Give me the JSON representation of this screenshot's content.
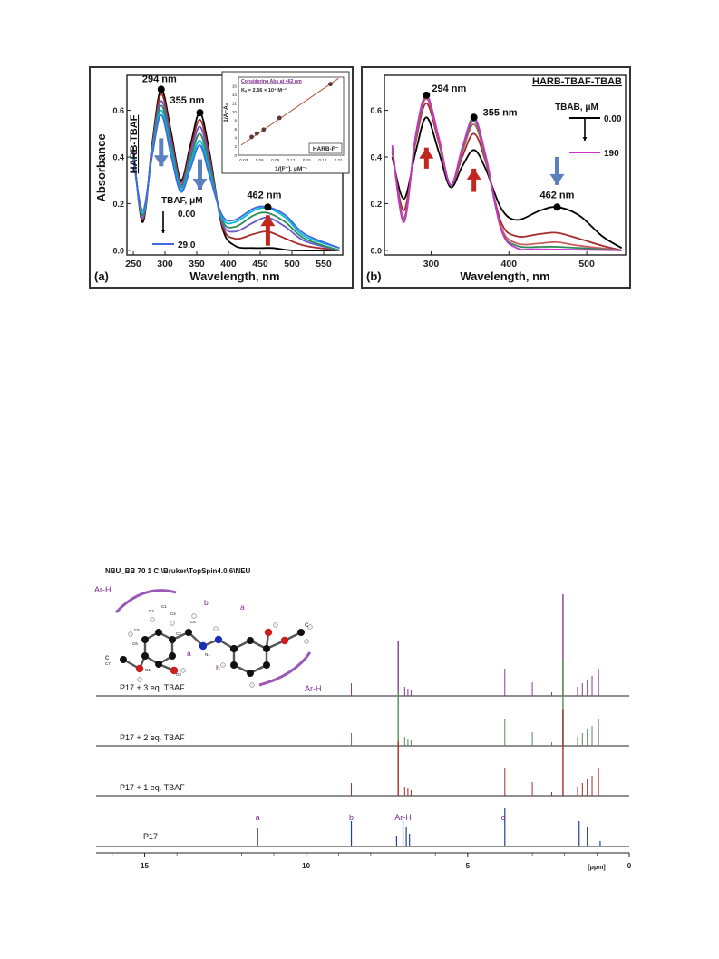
{
  "chart_data": [
    {
      "type": "line",
      "panel_label": "(a)",
      "xlabel": "Wavelength, nm",
      "ylabel": "Absorbance",
      "xlim": [
        240,
        580
      ],
      "ylim": [
        -0.02,
        0.75
      ],
      "xticks": [
        250,
        300,
        350,
        400,
        450,
        500,
        550
      ],
      "yticks": [
        0.0,
        0.2,
        0.4,
        0.6
      ],
      "series_label": "HARB-TBAF",
      "legend": {
        "title": "TBAF, μM",
        "start": "0.00",
        "end": "29.0"
      },
      "peaks": [
        {
          "label": "294 nm",
          "x": 294,
          "y": 0.69
        },
        {
          "label": "355 nm",
          "x": 355,
          "y": 0.59
        },
        {
          "label": "462 nm",
          "x": 462,
          "y": 0.185
        }
      ],
      "series": [
        {
          "color": "#000000",
          "values": [
            [
              250,
              0.44
            ],
            [
              265,
              0.12
            ],
            [
              280,
              0.46
            ],
            [
              294,
              0.69
            ],
            [
              310,
              0.5
            ],
            [
              325,
              0.3
            ],
            [
              340,
              0.45
            ],
            [
              355,
              0.59
            ],
            [
              370,
              0.42
            ],
            [
              390,
              0.1
            ],
            [
              410,
              0.02
            ],
            [
              440,
              0.01
            ],
            [
              470,
              0.01
            ],
            [
              500,
              0.0
            ],
            [
              575,
              0.0
            ]
          ]
        },
        {
          "color": "#a52a2a",
          "values": [
            [
              250,
              0.43
            ],
            [
              265,
              0.13
            ],
            [
              280,
              0.45
            ],
            [
              294,
              0.67
            ],
            [
              310,
              0.48
            ],
            [
              325,
              0.29
            ],
            [
              340,
              0.43
            ],
            [
              355,
              0.56
            ],
            [
              370,
              0.4
            ],
            [
              390,
              0.11
            ],
            [
              410,
              0.05
            ],
            [
              440,
              0.07
            ],
            [
              462,
              0.08
            ],
            [
              490,
              0.05
            ],
            [
              520,
              0.02
            ],
            [
              575,
              0.0
            ]
          ]
        },
        {
          "color": "#6a5acd",
          "values": [
            [
              250,
              0.42
            ],
            [
              265,
              0.14
            ],
            [
              280,
              0.44
            ],
            [
              294,
              0.64
            ],
            [
              310,
              0.46
            ],
            [
              325,
              0.28
            ],
            [
              340,
              0.41
            ],
            [
              355,
              0.53
            ],
            [
              370,
              0.38
            ],
            [
              390,
              0.12
            ],
            [
              410,
              0.08
            ],
            [
              440,
              0.12
            ],
            [
              462,
              0.14
            ],
            [
              490,
              0.1
            ],
            [
              520,
              0.04
            ],
            [
              575,
              0.0
            ]
          ]
        },
        {
          "color": "#2e8b57",
          "values": [
            [
              250,
              0.41
            ],
            [
              265,
              0.15
            ],
            [
              280,
              0.43
            ],
            [
              294,
              0.62
            ],
            [
              310,
              0.44
            ],
            [
              325,
              0.27
            ],
            [
              340,
              0.39
            ],
            [
              355,
              0.5
            ],
            [
              370,
              0.36
            ],
            [
              390,
              0.13
            ],
            [
              410,
              0.1
            ],
            [
              440,
              0.15
            ],
            [
              462,
              0.16
            ],
            [
              490,
              0.12
            ],
            [
              520,
              0.05
            ],
            [
              575,
              0.0
            ]
          ]
        },
        {
          "color": "#00bcd4",
          "values": [
            [
              250,
              0.4
            ],
            [
              265,
              0.16
            ],
            [
              280,
              0.42
            ],
            [
              294,
              0.6
            ],
            [
              310,
              0.42
            ],
            [
              325,
              0.26
            ],
            [
              340,
              0.37
            ],
            [
              355,
              0.47
            ],
            [
              370,
              0.34
            ],
            [
              390,
              0.14
            ],
            [
              410,
              0.12
            ],
            [
              440,
              0.17
            ],
            [
              462,
              0.18
            ],
            [
              490,
              0.14
            ],
            [
              520,
              0.06
            ],
            [
              575,
              0.01
            ]
          ]
        },
        {
          "color": "#4169e1",
          "values": [
            [
              250,
              0.39
            ],
            [
              265,
              0.17
            ],
            [
              280,
              0.41
            ],
            [
              294,
              0.58
            ],
            [
              310,
              0.4
            ],
            [
              325,
              0.25
            ],
            [
              340,
              0.35
            ],
            [
              355,
              0.45
            ],
            [
              370,
              0.32
            ],
            [
              390,
              0.15
            ],
            [
              410,
              0.13
            ],
            [
              440,
              0.18
            ],
            [
              462,
              0.185
            ],
            [
              490,
              0.15
            ],
            [
              520,
              0.07
            ],
            [
              575,
              0.01
            ]
          ]
        }
      ],
      "inset": {
        "title": "Considering Abs at 462 nm",
        "ka_text": "Kₐ = 2.56 × 10⁴ M⁻¹",
        "xlabel": "1/[F⁻], μM⁻¹",
        "ylabel": "1/A−A₀",
        "tag": "HARB-F⁻",
        "xlim": [
          0.02,
          0.22
        ],
        "ylim": [
          0,
          18
        ],
        "xticks": [
          "0.03",
          "0.06",
          "0.09",
          "0.12",
          "0.15",
          "0.18",
          "0.21"
        ],
        "yticks": [
          "0",
          "2",
          "4",
          "6",
          "8",
          "10",
          "12",
          "14",
          "16"
        ],
        "points": [
          [
            0.045,
            4.2
          ],
          [
            0.055,
            5.0
          ],
          [
            0.068,
            5.9
          ],
          [
            0.098,
            8.6
          ],
          [
            0.195,
            16.4
          ]
        ],
        "fit": [
          [
            0.025,
            2.3
          ],
          [
            0.21,
            17.7
          ]
        ]
      }
    },
    {
      "type": "line",
      "panel_label": "(b)",
      "xlabel": "Wavelength, nm",
      "ylabel": "",
      "xlim": [
        240,
        550
      ],
      "ylim": [
        -0.02,
        0.75
      ],
      "xticks": [
        300,
        400,
        500
      ],
      "yticks": [
        0.0,
        0.2,
        0.4,
        0.6
      ],
      "series_label": "HARB-TBAF-TBAB",
      "legend": {
        "title": "TBAB, μM",
        "start": "0.00",
        "end": "190"
      },
      "peaks": [
        {
          "label": "294 nm",
          "x": 294,
          "y": 0.665
        },
        {
          "label": "355 nm",
          "x": 355,
          "y": 0.57
        },
        {
          "label": "462 nm",
          "x": 462,
          "y": 0.185
        }
      ],
      "series": [
        {
          "color": "#000000",
          "values": [
            [
              250,
              0.4
            ],
            [
              265,
              0.22
            ],
            [
              280,
              0.42
            ],
            [
              294,
              0.57
            ],
            [
              310,
              0.42
            ],
            [
              325,
              0.27
            ],
            [
              340,
              0.36
            ],
            [
              355,
              0.43
            ],
            [
              370,
              0.35
            ],
            [
              390,
              0.18
            ],
            [
              410,
              0.13
            ],
            [
              440,
              0.17
            ],
            [
              462,
              0.185
            ],
            [
              490,
              0.15
            ],
            [
              520,
              0.06
            ],
            [
              545,
              0.01
            ]
          ]
        },
        {
          "color": "#a52a2a",
          "values": [
            [
              250,
              0.42
            ],
            [
              265,
              0.17
            ],
            [
              280,
              0.46
            ],
            [
              294,
              0.63
            ],
            [
              310,
              0.46
            ],
            [
              325,
              0.28
            ],
            [
              340,
              0.4
            ],
            [
              355,
              0.5
            ],
            [
              370,
              0.38
            ],
            [
              390,
              0.12
            ],
            [
              410,
              0.06
            ],
            [
              440,
              0.07
            ],
            [
              462,
              0.075
            ],
            [
              490,
              0.05
            ],
            [
              520,
              0.02
            ],
            [
              545,
              0.0
            ]
          ]
        },
        {
          "color": "#cd5c5c",
          "values": [
            [
              250,
              0.43
            ],
            [
              265,
              0.14
            ],
            [
              280,
              0.47
            ],
            [
              294,
              0.65
            ],
            [
              310,
              0.47
            ],
            [
              325,
              0.28
            ],
            [
              340,
              0.42
            ],
            [
              355,
              0.54
            ],
            [
              370,
              0.39
            ],
            [
              390,
              0.1
            ],
            [
              410,
              0.03
            ],
            [
              440,
              0.03
            ],
            [
              462,
              0.035
            ],
            [
              490,
              0.02
            ],
            [
              545,
              0.0
            ]
          ]
        },
        {
          "color": "#2e8b57",
          "values": [
            [
              250,
              0.44
            ],
            [
              265,
              0.13
            ],
            [
              280,
              0.48
            ],
            [
              294,
              0.66
            ],
            [
              310,
              0.48
            ],
            [
              325,
              0.28
            ],
            [
              340,
              0.43
            ],
            [
              355,
              0.555
            ],
            [
              370,
              0.4
            ],
            [
              390,
              0.09
            ],
            [
              410,
              0.02
            ],
            [
              440,
              0.015
            ],
            [
              462,
              0.015
            ],
            [
              545,
              0.0
            ]
          ]
        },
        {
          "color": "#cc33cc",
          "values": [
            [
              250,
              0.45
            ],
            [
              265,
              0.12
            ],
            [
              280,
              0.49
            ],
            [
              294,
              0.665
            ],
            [
              310,
              0.48
            ],
            [
              325,
              0.28
            ],
            [
              340,
              0.44
            ],
            [
              355,
              0.57
            ],
            [
              370,
              0.41
            ],
            [
              390,
              0.09
            ],
            [
              410,
              0.01
            ],
            [
              440,
              0.005
            ],
            [
              545,
              0.0
            ]
          ]
        }
      ]
    },
    {
      "type": "line",
      "title": "NBU_BB  70  1  C:\\Bruker\\TopSpin4.0.6\\NEU",
      "xlabel": "[ppm]",
      "xlim": [
        16.5,
        0
      ],
      "xticks": [
        "15",
        "10",
        "5",
        "0"
      ],
      "series": [
        {
          "name": "P17 + 3 eq. TBAF",
          "color": "#8b3a8b"
        },
        {
          "name": "P17 + 2 eq. TBAF",
          "color": "#5a8a5a"
        },
        {
          "name": "P17 + 1 eq. TBAF",
          "color": "#a52a2a"
        },
        {
          "name": "P17",
          "color": "#1f3fa0"
        }
      ],
      "peak_labels": [
        {
          "text": "a",
          "x": 11.5
        },
        {
          "text": "b",
          "x": 8.6
        },
        {
          "text": "Ar-H",
          "x": 7.0
        },
        {
          "text": "c",
          "x": 3.9
        }
      ],
      "molecule_labels": [
        "Ar-H",
        "b",
        "a",
        "c",
        "a",
        "b",
        "c",
        "Ar-H",
        "C1",
        "C2",
        "C3",
        "C4",
        "C5",
        "C6",
        "C7",
        "C8",
        "N1",
        "O1",
        "O2"
      ]
    }
  ]
}
